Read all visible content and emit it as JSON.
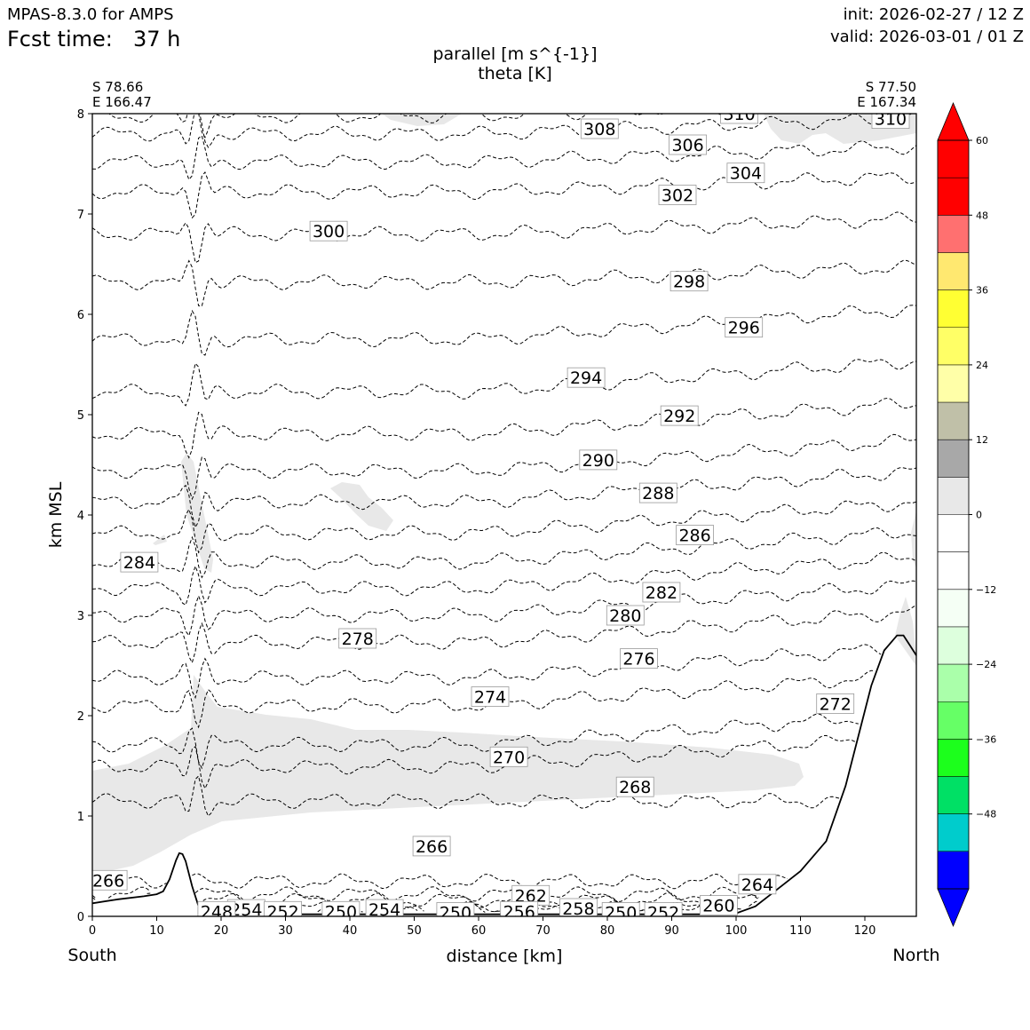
{
  "header": {
    "model": "MPAS-8.3.0 for AMPS",
    "fcst_label": "Fcst time:",
    "fcst_value": "37 h",
    "init": "init: 2026-02-27 / 12 Z",
    "valid": "valid: 2026-03-01 / 01 Z"
  },
  "corners": {
    "left_lat": "S 78.66",
    "left_lon": "E 166.47",
    "right_lat": "S 77.50",
    "right_lon": "E 167.34",
    "bottom_left": "South",
    "bottom_right": "North"
  },
  "chart_data": {
    "type": "cross-section",
    "title_line1": "parallel [m s^{-1}]",
    "title_line2": "theta [K]",
    "xlabel": "distance [km]",
    "ylabel": "km MSL",
    "xlim": [
      0,
      128
    ],
    "ylim": [
      0,
      8
    ],
    "xticks": [
      0,
      10,
      20,
      30,
      40,
      50,
      60,
      70,
      80,
      90,
      100,
      110,
      120
    ],
    "yticks": [
      0,
      1,
      2,
      3,
      4,
      5,
      6,
      7,
      8
    ],
    "theta_contours": [
      {
        "level": 258,
        "y0": 0.05
      },
      {
        "level": 260,
        "y0": 0.08
      },
      {
        "level": 262,
        "y0": 0.16
      },
      {
        "level": 264,
        "y0": 0.22
      },
      {
        "level": 266,
        "y0": 0.35
      },
      {
        "level": 268,
        "y0": 1.15
      },
      {
        "level": 270,
        "y0": 1.49
      },
      {
        "level": 272,
        "y0": 1.71
      },
      {
        "level": 274,
        "y0": 2.1
      },
      {
        "level": 276,
        "y0": 2.38
      },
      {
        "level": 278,
        "y0": 2.73
      },
      {
        "level": 280,
        "y0": 3.0
      },
      {
        "level": 282,
        "y0": 3.27
      },
      {
        "level": 284,
        "y0": 3.53
      },
      {
        "level": 286,
        "y0": 3.82
      },
      {
        "level": 288,
        "y0": 4.13
      },
      {
        "level": 290,
        "y0": 4.44
      },
      {
        "level": 292,
        "y0": 4.81
      },
      {
        "level": 294,
        "y0": 5.23
      },
      {
        "level": 296,
        "y0": 5.75
      },
      {
        "level": 298,
        "y0": 6.32
      },
      {
        "level": 300,
        "y0": 6.8
      },
      {
        "level": 302,
        "y0": 7.22
      },
      {
        "level": 304,
        "y0": 7.52
      },
      {
        "level": 306,
        "y0": 7.8
      },
      {
        "level": 308,
        "y0": 7.98
      }
    ],
    "contour_labels": [
      {
        "text": "308",
        "x": 78.8,
        "y": 7.85
      },
      {
        "text": "306",
        "x": 92.5,
        "y": 7.69
      },
      {
        "text": "304",
        "x": 101.5,
        "y": 7.41
      },
      {
        "text": "302",
        "x": 90.9,
        "y": 7.19
      },
      {
        "text": "300",
        "x": 36.7,
        "y": 6.83
      },
      {
        "text": "310",
        "x": 100.5,
        "y": 8.0
      },
      {
        "text": "310",
        "x": 124.0,
        "y": 7.95
      },
      {
        "text": "298",
        "x": 92.7,
        "y": 6.33
      },
      {
        "text": "296",
        "x": 101.2,
        "y": 5.87
      },
      {
        "text": "294",
        "x": 76.7,
        "y": 5.37
      },
      {
        "text": "292",
        "x": 91.2,
        "y": 4.99
      },
      {
        "text": "290",
        "x": 78.6,
        "y": 4.55
      },
      {
        "text": "288",
        "x": 87.9,
        "y": 4.22
      },
      {
        "text": "286",
        "x": 93.6,
        "y": 3.8
      },
      {
        "text": "284",
        "x": 7.3,
        "y": 3.53
      },
      {
        "text": "282",
        "x": 88.4,
        "y": 3.23
      },
      {
        "text": "280",
        "x": 82.8,
        "y": 3.0
      },
      {
        "text": "278",
        "x": 41.2,
        "y": 2.77
      },
      {
        "text": "276",
        "x": 84.9,
        "y": 2.57
      },
      {
        "text": "274",
        "x": 61.8,
        "y": 2.19
      },
      {
        "text": "272",
        "x": 115.4,
        "y": 2.12
      },
      {
        "text": "270",
        "x": 64.7,
        "y": 1.59
      },
      {
        "text": "268",
        "x": 84.3,
        "y": 1.29
      },
      {
        "text": "266",
        "x": 52.7,
        "y": 0.7
      },
      {
        "text": "266",
        "x": 2.5,
        "y": 0.36
      },
      {
        "text": "264",
        "x": 103.3,
        "y": 0.32
      },
      {
        "text": "262",
        "x": 68.1,
        "y": 0.21
      },
      {
        "text": "260",
        "x": 97.3,
        "y": 0.11
      },
      {
        "text": "258",
        "x": 75.5,
        "y": 0.08
      },
      {
        "text": "256",
        "x": 66.3,
        "y": 0.05
      },
      {
        "text": "254",
        "x": 23.9,
        "y": 0.07
      },
      {
        "text": "254",
        "x": 45.4,
        "y": 0.07
      },
      {
        "text": "252",
        "x": 29.6,
        "y": 0.05
      },
      {
        "text": "252",
        "x": 88.7,
        "y": 0.04
      },
      {
        "text": "250",
        "x": 38.6,
        "y": 0.05
      },
      {
        "text": "250",
        "x": 56.4,
        "y": 0.04
      },
      {
        "text": "250",
        "x": 82.1,
        "y": 0.04
      },
      {
        "text": "248",
        "x": 19.3,
        "y": 0.05
      }
    ],
    "shaded_regions": [
      {
        "value_range": "0 to 12",
        "fill": "#e8e8e8",
        "description": "low-level jet band"
      }
    ],
    "terrain": [
      [
        0,
        0.13
      ],
      [
        4,
        0.17
      ],
      [
        8,
        0.2
      ],
      [
        10,
        0.22
      ],
      [
        11,
        0.25
      ],
      [
        12,
        0.37
      ],
      [
        13,
        0.56
      ],
      [
        13.5,
        0.63
      ],
      [
        14,
        0.62
      ],
      [
        14.5,
        0.55
      ],
      [
        15.5,
        0.3
      ],
      [
        16.5,
        0.1
      ],
      [
        17.5,
        0.03
      ],
      [
        20,
        0.02
      ],
      [
        40,
        0.02
      ],
      [
        60,
        0.02
      ],
      [
        80,
        0.02
      ],
      [
        95,
        0.02
      ],
      [
        100,
        0.03
      ],
      [
        103,
        0.1
      ],
      [
        106,
        0.25
      ],
      [
        110,
        0.45
      ],
      [
        114,
        0.75
      ],
      [
        117,
        1.3
      ],
      [
        119,
        1.8
      ],
      [
        121,
        2.3
      ],
      [
        123,
        2.65
      ],
      [
        125,
        2.8
      ],
      [
        126,
        2.8
      ],
      [
        127,
        2.7
      ],
      [
        128,
        2.6
      ]
    ],
    "colorbar": {
      "label": "parallel [m s^{-1}]",
      "levels": [
        -60,
        -54,
        -48,
        -42,
        -36,
        -30,
        -24,
        -18,
        -12,
        -6,
        0,
        6,
        12,
        18,
        24,
        30,
        36,
        42,
        48,
        54,
        60
      ],
      "colors": [
        "#0000ff",
        "#00cccc",
        "#00e065",
        "#1cff1c",
        "#66ff66",
        "#aaffaa",
        "#ddffdd",
        "#f5fff5",
        "#ffffff",
        "#ffffff",
        "#e8e8e8",
        "#a8a8a8",
        "#c0c0a8",
        "#ffffa8",
        "#ffff66",
        "#ffff33",
        "#ffe870",
        "#ff7070",
        "#ff0000",
        "#ff0000"
      ],
      "under_color": "#0000ff",
      "over_color": "#ff0000",
      "tick_values": [
        -48,
        -36,
        -24,
        -12,
        0,
        12,
        24,
        36,
        48,
        60
      ],
      "tick_labels": [
        "−48",
        "−36",
        "−24",
        "−12",
        "0",
        "12",
        "24",
        "36",
        "48",
        "60"
      ]
    }
  }
}
